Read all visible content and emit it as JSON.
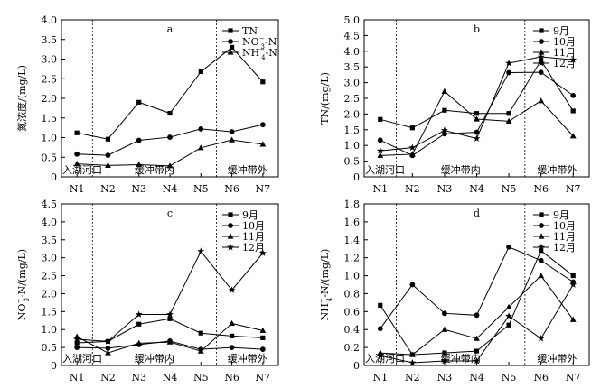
{
  "chart_data": [
    {
      "panel": "a",
      "type": "line",
      "categories": [
        "N1",
        "N2",
        "N3",
        "N4",
        "N5",
        "N6",
        "N7"
      ],
      "ylabel": "氮浓度/(mg/L)",
      "ylim": [
        0,
        4.0
      ],
      "yticks": [
        "0",
        "0.5",
        "1.0",
        "1.5",
        "2.0",
        "2.5",
        "3.0",
        "3.5",
        "4.0"
      ],
      "regions": [
        "入湖河口",
        "缓冲带内",
        "缓冲带外"
      ],
      "legend_position": "top-right",
      "series": [
        {
          "name": "TN",
          "marker": "square",
          "values": [
            1.12,
            0.96,
            1.9,
            1.62,
            2.68,
            3.3,
            2.42
          ]
        },
        {
          "name": "NO3-N",
          "marker": "circle",
          "values": [
            0.58,
            0.55,
            0.93,
            1.01,
            1.22,
            1.15,
            1.33
          ]
        },
        {
          "name": "NH4-N",
          "marker": "triangle",
          "values": [
            0.33,
            0.29,
            0.31,
            0.28,
            0.74,
            0.94,
            0.83
          ]
        }
      ]
    },
    {
      "panel": "b",
      "type": "line",
      "categories": [
        "N1",
        "N2",
        "N3",
        "N4",
        "N5",
        "N6",
        "N7"
      ],
      "ylabel": "TN/(mg/L)",
      "ylim": [
        0,
        5.0
      ],
      "yticks": [
        "0",
        "0.5",
        "1.0",
        "1.5",
        "2.0",
        "2.5",
        "3.0",
        "3.5",
        "4.0",
        "4.5",
        "5.0"
      ],
      "regions": [
        "入湖河口",
        "缓冲带内",
        "缓冲带外"
      ],
      "legend_position": "top-right",
      "series": [
        {
          "name": "9月",
          "marker": "square",
          "values": [
            1.83,
            1.56,
            2.12,
            2.02,
            2.02,
            3.71,
            2.1
          ]
        },
        {
          "name": "10月",
          "marker": "circle",
          "values": [
            1.17,
            0.68,
            1.37,
            1.42,
            3.32,
            3.33,
            2.59
          ]
        },
        {
          "name": "11月",
          "marker": "triangle",
          "values": [
            0.68,
            0.72,
            2.72,
            1.84,
            1.77,
            2.42,
            1.3
          ]
        },
        {
          "name": "12月",
          "marker": "star",
          "values": [
            0.83,
            0.93,
            1.48,
            1.22,
            3.62,
            3.82,
            3.73
          ]
        }
      ]
    },
    {
      "panel": "c",
      "type": "line",
      "categories": [
        "N1",
        "N2",
        "N3",
        "N4",
        "N5",
        "N6",
        "N7"
      ],
      "ylabel": "NO3-N/(mg/L)",
      "ylim": [
        0,
        4.5
      ],
      "yticks": [
        "0",
        "0.5",
        "1.0",
        "1.5",
        "2.0",
        "2.5",
        "3.0",
        "3.5",
        "4.0",
        "4.5"
      ],
      "regions": [
        "入湖河口",
        "缓冲带内",
        "缓冲带外"
      ],
      "legend_position": "top-right",
      "series": [
        {
          "name": "9月",
          "marker": "square",
          "values": [
            0.63,
            0.67,
            1.15,
            1.3,
            0.9,
            0.82,
            0.77
          ]
        },
        {
          "name": "10月",
          "marker": "circle",
          "values": [
            0.5,
            0.48,
            0.58,
            0.68,
            0.45,
            0.5,
            0.45
          ]
        },
        {
          "name": "11月",
          "marker": "triangle",
          "values": [
            0.8,
            0.35,
            0.62,
            0.65,
            0.4,
            1.17,
            0.97
          ]
        },
        {
          "name": "12月",
          "marker": "star",
          "values": [
            0.73,
            0.67,
            1.42,
            1.42,
            3.18,
            2.1,
            3.13
          ]
        }
      ]
    },
    {
      "panel": "d",
      "type": "line",
      "categories": [
        "N1",
        "N2",
        "N3",
        "N4",
        "N5",
        "N6",
        "N7"
      ],
      "ylabel": "NH4-N/(mg/L)",
      "ylim": [
        0,
        1.8
      ],
      "yticks": [
        "0",
        "0.2",
        "0.4",
        "0.6",
        "0.8",
        "1.0",
        "1.2",
        "1.4",
        "1.6",
        "1.8"
      ],
      "regions": [
        "入湖河口",
        "缓冲带内",
        "缓冲带外"
      ],
      "legend_position": "top-right",
      "series": [
        {
          "name": "9月",
          "marker": "square",
          "values": [
            0.67,
            0.12,
            0.14,
            0.16,
            0.45,
            1.28,
            1.0
          ]
        },
        {
          "name": "10月",
          "marker": "circle",
          "values": [
            0.41,
            0.9,
            0.58,
            0.56,
            1.32,
            1.17,
            0.93
          ]
        },
        {
          "name": "11月",
          "marker": "triangle",
          "values": [
            0.14,
            0.12,
            0.4,
            0.3,
            0.65,
            1.0,
            0.51
          ]
        },
        {
          "name": "12月",
          "marker": "star",
          "values": [
            0.11,
            0.03,
            0.05,
            0.05,
            0.55,
            0.3,
            0.9
          ]
        }
      ]
    }
  ]
}
